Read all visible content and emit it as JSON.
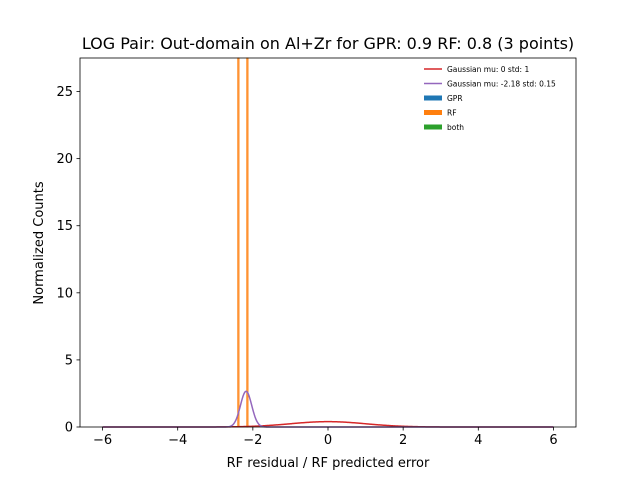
{
  "chart_data": {
    "type": "histogram",
    "title": "LOG Pair: Out-domain on Al+Zr for GPR: 0.9 RF: 0.8 (3 points)",
    "xlabel": "RF residual / RF predicted error",
    "ylabel": "Normalized Counts",
    "xlim": [
      -6.6,
      6.6
    ],
    "ylim": [
      0,
      27.5
    ],
    "xticks": [
      -6,
      -4,
      -2,
      0,
      2,
      4,
      6
    ],
    "xtick_labels": [
      "−6",
      "−4",
      "−2",
      "0",
      "2",
      "4",
      "6"
    ],
    "yticks": [
      0,
      5,
      10,
      15,
      20,
      25
    ],
    "ytick_labels": [
      "0",
      "5",
      "10",
      "15",
      "20",
      "25"
    ],
    "grid": false,
    "legend_position": "upper right",
    "series": [
      {
        "name": "Gaussian mu: 0 std: 1",
        "kind": "line",
        "color": "#d62728",
        "mu": 0,
        "std": 1,
        "x_range": [
          -6,
          6
        ]
      },
      {
        "name": "Gaussian mu: -2.18 std: 0.15",
        "kind": "line",
        "color": "#9467bd",
        "mu": -2.18,
        "std": 0.15,
        "x_range": [
          -6,
          6
        ]
      },
      {
        "name": "GPR",
        "kind": "bar",
        "color": "#1f77b4",
        "bins": []
      },
      {
        "name": "RF",
        "kind": "bar",
        "color": "#ff7f0e",
        "bins": [
          {
            "x0": -2.4,
            "x1": -2.37,
            "height": 27.5
          },
          {
            "x0": -2.16,
            "x1": -2.13,
            "height": 27.5
          }
        ]
      },
      {
        "name": "both",
        "kind": "bar",
        "color": "#2ca02c",
        "bins": []
      }
    ]
  }
}
